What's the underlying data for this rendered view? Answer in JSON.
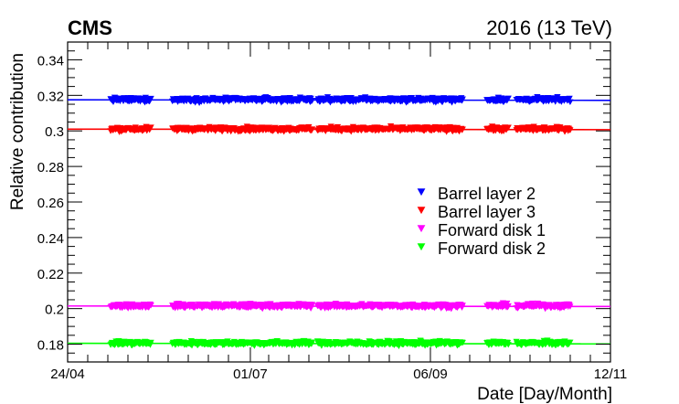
{
  "chart_data": {
    "type": "scatter",
    "experiment_label": "CMS",
    "run_label": "2016 (13 TeV)",
    "xlabel": "Date [Day/Month]",
    "ylabel": "Relative contribution",
    "x_ticks": [
      {
        "date": "2016-04-24",
        "label": "24/04"
      },
      {
        "date": "2016-07-01",
        "label": "01/07"
      },
      {
        "date": "2016-09-06",
        "label": "06/09"
      },
      {
        "date": "2016-11-12",
        "label": "12/11"
      }
    ],
    "xlim": [
      "2016-04-24",
      "2016-11-12"
    ],
    "ylim": [
      0.17,
      0.35
    ],
    "y_ticks": [
      0.18,
      0.2,
      0.22,
      0.24,
      0.26,
      0.28,
      0.3,
      0.32,
      0.34
    ],
    "y_tick_labels": [
      "0.18",
      "0.2",
      "0.22",
      "0.24",
      "0.26",
      "0.28",
      "0.3",
      "0.32",
      "0.34"
    ],
    "legend_position": "center-right",
    "marker": "triangle-down",
    "data_periods": [
      [
        "2016-05-10",
        "2016-05-25"
      ],
      [
        "2016-06-02",
        "2016-07-24"
      ],
      [
        "2016-07-26",
        "2016-09-18"
      ],
      [
        "2016-09-27",
        "2016-10-05"
      ],
      [
        "2016-10-08",
        "2016-10-28"
      ]
    ],
    "series": [
      {
        "name": "Barrel layer 2",
        "color": "#0000ff",
        "mean": 0.3175,
        "spread": 0.0012
      },
      {
        "name": "Barrel layer 3",
        "color": "#ff0000",
        "mean": 0.301,
        "spread": 0.0012
      },
      {
        "name": "Forward disk 1",
        "color": "#ff00ff",
        "mean": 0.2015,
        "spread": 0.0012
      },
      {
        "name": "Forward disk 2",
        "color": "#00ff00",
        "mean": 0.1805,
        "spread": 0.0012
      }
    ]
  }
}
